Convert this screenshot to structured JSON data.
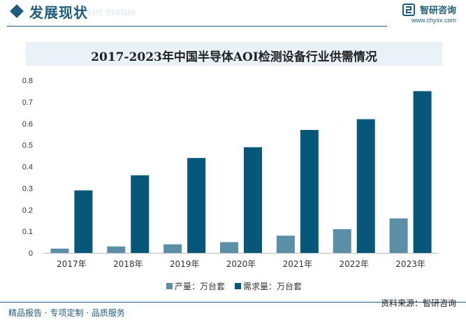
{
  "header": {
    "section_title": "发展现状",
    "section_subtitle": "ent status",
    "brand_name": "智研咨询",
    "brand_url": "www.chyxx.com"
  },
  "colors": {
    "accent": "#1f5d7f",
    "output_bar": "#5b8fa8",
    "demand_bar": "#07577a",
    "title_bg": "#eaf2f7"
  },
  "footer": {
    "left": "精品报告 · 专项定制 · 品质服务",
    "source": "资料来源：智研咨询"
  },
  "chart_data": {
    "type": "bar",
    "title": "2017-2023年中国半导体AOI检测设备行业供需情况",
    "categories": [
      "2017年",
      "2018年",
      "2019年",
      "2020年",
      "2021年",
      "2022年",
      "2023年"
    ],
    "series": [
      {
        "name": "产量：万台套",
        "color": "#5b8fa8",
        "values": [
          0.02,
          0.03,
          0.04,
          0.05,
          0.08,
          0.11,
          0.16
        ]
      },
      {
        "name": "需求量：万台套",
        "color": "#07577a",
        "values": [
          0.29,
          0.36,
          0.44,
          0.49,
          0.57,
          0.62,
          0.75
        ]
      }
    ],
    "ylim": [
      0,
      0.8
    ],
    "yticks": [
      "0",
      "0.1",
      "0.2",
      "0.3",
      "0.4",
      "0.5",
      "0.6",
      "0.7",
      "0.8"
    ],
    "legend_position": "bottom-center",
    "grid": false
  }
}
